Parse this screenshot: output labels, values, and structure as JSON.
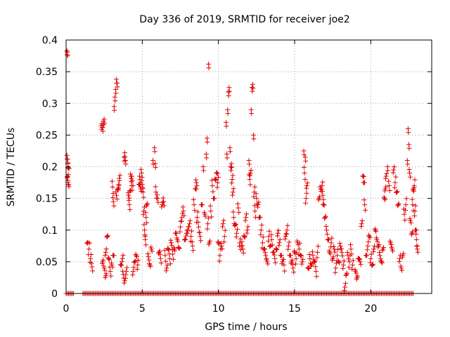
{
  "chart_data": {
    "type": "scatter",
    "title": "Day 336 of 2019, SRMTID for receiver joe2",
    "xlabel": "GPS time / hours",
    "ylabel": "SRMTID / TECUs",
    "xlim": [
      0,
      24
    ],
    "ylim": [
      0,
      0.4
    ],
    "xticks": [
      0,
      5,
      10,
      15,
      20
    ],
    "xtick_labels": [
      "0",
      "5",
      "10",
      "15",
      "20"
    ],
    "yticks": [
      0,
      0.05,
      0.1,
      0.15,
      0.2,
      0.25,
      0.3,
      0.35,
      0.4
    ],
    "ytick_labels": [
      "0",
      "0.05",
      "0.1",
      "0.15",
      "0.2",
      "0.25",
      "0.3",
      "0.35",
      "0.4"
    ],
    "grid": true,
    "marker": "+",
    "color": "#e00000",
    "series": [
      {
        "name": "SRMTID",
        "points": [
          [
            0.05,
            0.383
          ],
          [
            0.08,
            0.381
          ],
          [
            0.05,
            0.218
          ],
          [
            0.1,
            0.212
          ],
          [
            0.12,
            0.205
          ],
          [
            0.15,
            0.198
          ],
          [
            0.1,
            0.185
          ],
          [
            0.12,
            0.178
          ],
          [
            0.15,
            0.172
          ],
          [
            1.4,
            0.08
          ],
          [
            1.5,
            0.07
          ],
          [
            1.6,
            0.055
          ],
          [
            1.7,
            0.042
          ],
          [
            2.3,
            0.265
          ],
          [
            2.35,
            0.268
          ],
          [
            2.4,
            0.262
          ],
          [
            2.45,
            0.272
          ],
          [
            2.5,
            0.275
          ],
          [
            2.4,
            0.05
          ],
          [
            2.5,
            0.04
          ],
          [
            2.6,
            0.065
          ],
          [
            2.7,
            0.09
          ],
          [
            2.6,
            0.028
          ],
          [
            2.8,
            0.055
          ],
          [
            2.9,
            0.035
          ],
          [
            3.0,
            0.045
          ],
          [
            3.1,
            0.06
          ],
          [
            3.05,
            0.168
          ],
          [
            3.1,
            0.145
          ],
          [
            3.15,
            0.295
          ],
          [
            3.2,
            0.31
          ],
          [
            3.25,
            0.322
          ],
          [
            3.3,
            0.338
          ],
          [
            3.35,
            0.332
          ],
          [
            3.3,
            0.155
          ],
          [
            3.4,
            0.165
          ],
          [
            3.45,
            0.172
          ],
          [
            3.5,
            0.178
          ],
          [
            3.6,
            0.045
          ],
          [
            3.7,
            0.055
          ],
          [
            3.8,
            0.215
          ],
          [
            3.85,
            0.222
          ],
          [
            3.9,
            0.21
          ],
          [
            3.75,
            0.03
          ],
          [
            3.85,
            0.02
          ],
          [
            3.95,
            0.035
          ],
          [
            4.1,
            0.155
          ],
          [
            4.2,
            0.162
          ],
          [
            4.3,
            0.17
          ],
          [
            4.15,
            0.14
          ],
          [
            4.25,
            0.185
          ],
          [
            4.35,
            0.178
          ],
          [
            4.4,
            0.035
          ],
          [
            4.5,
            0.05
          ],
          [
            4.6,
            0.06
          ],
          [
            4.7,
            0.045
          ],
          [
            4.8,
            0.172
          ],
          [
            4.85,
            0.18
          ],
          [
            4.9,
            0.165
          ],
          [
            4.95,
            0.19
          ],
          [
            5.0,
            0.172
          ],
          [
            5.05,
            0.16
          ],
          [
            5.1,
            0.13
          ],
          [
            5.15,
            0.1
          ],
          [
            5.2,
            0.085
          ],
          [
            5.25,
            0.12
          ],
          [
            5.3,
            0.14
          ],
          [
            5.4,
            0.058
          ],
          [
            5.5,
            0.045
          ],
          [
            5.6,
            0.07
          ],
          [
            5.7,
            0.21
          ],
          [
            5.8,
            0.23
          ],
          [
            5.85,
            0.205
          ],
          [
            5.9,
            0.16
          ],
          [
            6.0,
            0.15
          ],
          [
            6.1,
            0.065
          ],
          [
            6.2,
            0.055
          ],
          [
            6.3,
            0.14
          ],
          [
            6.4,
            0.145
          ],
          [
            6.5,
            0.06
          ],
          [
            6.6,
            0.04
          ],
          [
            6.7,
            0.07
          ],
          [
            6.8,
            0.055
          ],
          [
            6.9,
            0.08
          ],
          [
            7.0,
            0.062
          ],
          [
            7.1,
            0.07
          ],
          [
            7.2,
            0.095
          ],
          [
            7.3,
            0.085
          ],
          [
            7.4,
            0.072
          ],
          [
            7.5,
            0.105
          ],
          [
            7.6,
            0.12
          ],
          [
            7.7,
            0.13
          ],
          [
            7.8,
            0.085
          ],
          [
            7.9,
            0.095
          ],
          [
            8.0,
            0.1
          ],
          [
            8.1,
            0.11
          ],
          [
            8.2,
            0.09
          ],
          [
            8.3,
            0.075
          ],
          [
            8.4,
            0.14
          ],
          [
            8.5,
            0.165
          ],
          [
            8.55,
            0.175
          ],
          [
            8.6,
            0.12
          ],
          [
            8.7,
            0.105
          ],
          [
            8.8,
            0.09
          ],
          [
            8.9,
            0.14
          ],
          [
            9.0,
            0.2
          ],
          [
            9.1,
            0.125
          ],
          [
            9.2,
            0.22
          ],
          [
            9.25,
            0.245
          ],
          [
            9.3,
            0.11
          ],
          [
            9.35,
            0.362
          ],
          [
            9.4,
            0.08
          ],
          [
            9.5,
            0.13
          ],
          [
            9.6,
            0.17
          ],
          [
            9.7,
            0.15
          ],
          [
            9.8,
            0.18
          ],
          [
            9.9,
            0.19
          ],
          [
            9.95,
            0.175
          ],
          [
            10.0,
            0.08
          ],
          [
            10.1,
            0.06
          ],
          [
            10.2,
            0.075
          ],
          [
            10.3,
            0.11
          ],
          [
            10.4,
            0.09
          ],
          [
            10.5,
            0.27
          ],
          [
            10.55,
            0.22
          ],
          [
            10.6,
            0.29
          ],
          [
            10.65,
            0.318
          ],
          [
            10.7,
            0.325
          ],
          [
            10.75,
            0.23
          ],
          [
            10.8,
            0.2
          ],
          [
            10.85,
            0.205
          ],
          [
            10.9,
            0.18
          ],
          [
            10.95,
            0.16
          ],
          [
            11.0,
            0.12
          ],
          [
            11.1,
            0.108
          ],
          [
            11.2,
            0.095
          ],
          [
            11.3,
            0.135
          ],
          [
            11.4,
            0.08
          ],
          [
            11.5,
            0.075
          ],
          [
            11.6,
            0.07
          ],
          [
            11.7,
            0.09
          ],
          [
            11.8,
            0.12
          ],
          [
            11.9,
            0.1
          ],
          [
            12.0,
            0.21
          ],
          [
            12.05,
            0.18
          ],
          [
            12.1,
            0.19
          ],
          [
            12.15,
            0.29
          ],
          [
            12.2,
            0.325
          ],
          [
            12.25,
            0.33
          ],
          [
            12.3,
            0.25
          ],
          [
            12.35,
            0.16
          ],
          [
            12.4,
            0.13
          ],
          [
            12.5,
            0.15
          ],
          [
            12.6,
            0.14
          ],
          [
            12.7,
            0.12
          ],
          [
            12.8,
            0.1
          ],
          [
            12.9,
            0.08
          ],
          [
            13.0,
            0.07
          ],
          [
            13.1,
            0.06
          ],
          [
            13.2,
            0.05
          ],
          [
            13.3,
            0.09
          ],
          [
            13.4,
            0.075
          ],
          [
            13.5,
            0.085
          ],
          [
            13.6,
            0.065
          ],
          [
            13.7,
            0.055
          ],
          [
            13.8,
            0.07
          ],
          [
            13.9,
            0.095
          ],
          [
            14.0,
            0.08
          ],
          [
            14.1,
            0.06
          ],
          [
            14.2,
            0.05
          ],
          [
            14.3,
            0.045
          ],
          [
            14.4,
            0.09
          ],
          [
            14.5,
            0.1
          ],
          [
            14.6,
            0.075
          ],
          [
            14.7,
            0.06
          ],
          [
            14.8,
            0.05
          ],
          [
            14.9,
            0.04
          ],
          [
            15.0,
            0.065
          ],
          [
            15.1,
            0.055
          ],
          [
            15.2,
            0.08
          ],
          [
            15.3,
            0.07
          ],
          [
            15.4,
            0.06
          ],
          [
            15.5,
            0.05
          ],
          [
            15.6,
            0.225
          ],
          [
            15.65,
            0.19
          ],
          [
            15.7,
            0.215
          ],
          [
            15.75,
            0.15
          ],
          [
            15.8,
            0.17
          ],
          [
            15.9,
            0.04
          ],
          [
            16.0,
            0.055
          ],
          [
            16.1,
            0.045
          ],
          [
            16.2,
            0.06
          ],
          [
            16.3,
            0.05
          ],
          [
            16.4,
            0.035
          ],
          [
            16.5,
            0.065
          ],
          [
            16.6,
            0.15
          ],
          [
            16.7,
            0.165
          ],
          [
            16.8,
            0.17
          ],
          [
            16.85,
            0.155
          ],
          [
            16.9,
            0.14
          ],
          [
            17.0,
            0.12
          ],
          [
            17.1,
            0.1
          ],
          [
            17.2,
            0.085
          ],
          [
            17.3,
            0.065
          ],
          [
            17.4,
            0.08
          ],
          [
            17.5,
            0.055
          ],
          [
            17.6,
            0.07
          ],
          [
            17.7,
            0.04
          ],
          [
            17.8,
            0.06
          ],
          [
            17.9,
            0.05
          ],
          [
            18.0,
            0.075
          ],
          [
            18.1,
            0.065
          ],
          [
            18.2,
            0.045
          ],
          [
            18.3,
            0.01
          ],
          [
            18.4,
            0.03
          ],
          [
            18.5,
            0.06
          ],
          [
            18.6,
            0.05
          ],
          [
            18.7,
            0.07
          ],
          [
            18.8,
            0.045
          ],
          [
            19.0,
            0.035
          ],
          [
            19.1,
            0.025
          ],
          [
            19.2,
            0.055
          ],
          [
            19.3,
            0.05
          ],
          [
            19.4,
            0.11
          ],
          [
            19.5,
            0.185
          ],
          [
            19.55,
            0.175
          ],
          [
            19.6,
            0.14
          ],
          [
            19.7,
            0.06
          ],
          [
            19.8,
            0.075
          ],
          [
            19.9,
            0.09
          ],
          [
            20.0,
            0.055
          ],
          [
            20.1,
            0.045
          ],
          [
            20.2,
            0.07
          ],
          [
            20.3,
            0.1
          ],
          [
            20.4,
            0.085
          ],
          [
            20.5,
            0.075
          ],
          [
            20.6,
            0.06
          ],
          [
            20.7,
            0.05
          ],
          [
            20.8,
            0.07
          ],
          [
            20.9,
            0.15
          ],
          [
            20.95,
            0.165
          ],
          [
            21.0,
            0.185
          ],
          [
            21.1,
            0.2
          ],
          [
            21.2,
            0.17
          ],
          [
            21.3,
            0.08
          ],
          [
            21.4,
            0.07
          ],
          [
            21.5,
            0.195
          ],
          [
            21.6,
            0.175
          ],
          [
            21.7,
            0.16
          ],
          [
            21.8,
            0.14
          ],
          [
            21.9,
            0.055
          ],
          [
            22.0,
            0.04
          ],
          [
            22.1,
            0.06
          ],
          [
            22.2,
            0.125
          ],
          [
            22.3,
            0.14
          ],
          [
            22.4,
            0.21
          ],
          [
            22.45,
            0.26
          ],
          [
            22.5,
            0.235
          ],
          [
            22.55,
            0.19
          ],
          [
            22.6,
            0.115
          ],
          [
            22.7,
            0.095
          ],
          [
            22.75,
            0.14
          ],
          [
            22.8,
            0.165
          ],
          [
            22.85,
            0.17
          ],
          [
            22.9,
            0.13
          ],
          [
            22.95,
            0.1
          ],
          [
            23.0,
            0.085
          ],
          [
            23.05,
            0.07
          ]
        ]
      }
    ],
    "zero_band_x_ranges": [
      [
        0.0,
        0.5
      ],
      [
        1.1,
        11.5
      ],
      [
        11.5,
        22.8
      ]
    ]
  }
}
